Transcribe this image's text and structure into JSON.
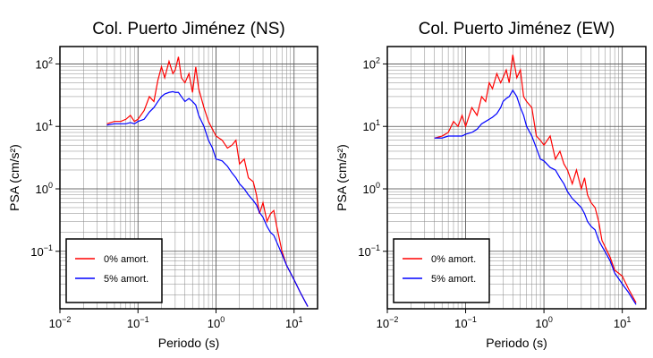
{
  "chart_data": [
    {
      "type": "line",
      "title": "Col. Puerto Jiménez (NS)",
      "xlabel": "Periodo (s)",
      "ylabel": "PSA (cm/s²)",
      "log_x": true,
      "log_y": true,
      "grid": true,
      "legend": "lower left",
      "xlim": [
        0.01,
        20
      ],
      "ylim": [
        0.012,
        190
      ],
      "xticks": [
        {
          "value": 0.01,
          "label": "10",
          "exponent": "−2"
        },
        {
          "value": 0.1,
          "label": "10",
          "exponent": "−1"
        },
        {
          "value": 1,
          "label": "10",
          "exponent": "0"
        },
        {
          "value": 10,
          "label": "10",
          "exponent": "1"
        }
      ],
      "yticks": [
        {
          "value": 0.1,
          "label": "10",
          "exponent": "−1"
        },
        {
          "value": 1,
          "label": "10",
          "exponent": "0"
        },
        {
          "value": 10,
          "label": "10",
          "exponent": "1"
        },
        {
          "value": 100,
          "label": "10",
          "exponent": "2"
        }
      ],
      "x": [
        0.04,
        0.05,
        0.06,
        0.07,
        0.08,
        0.09,
        0.1,
        0.12,
        0.14,
        0.16,
        0.18,
        0.2,
        0.22,
        0.25,
        0.28,
        0.3,
        0.33,
        0.36,
        0.4,
        0.45,
        0.5,
        0.55,
        0.6,
        0.7,
        0.8,
        0.9,
        1.0,
        1.2,
        1.4,
        1.6,
        1.8,
        2.0,
        2.3,
        2.6,
        3.0,
        3.3,
        3.6,
        4.0,
        4.5,
        5.0,
        5.5,
        6.0,
        7.0,
        8.0,
        10,
        12,
        15
      ],
      "series": [
        {
          "name": "0% amort.",
          "color": "#ff0000",
          "values": [
            11,
            12,
            12,
            13,
            15,
            12,
            13,
            18,
            30,
            25,
            55,
            90,
            60,
            110,
            70,
            80,
            130,
            60,
            50,
            70,
            35,
            90,
            40,
            20,
            12,
            9,
            7,
            6,
            4.5,
            5,
            6,
            2.5,
            3,
            1.5,
            1.3,
            0.8,
            0.4,
            0.6,
            0.3,
            0.4,
            0.45,
            0.25,
            0.1,
            0.06,
            0.035,
            0.022,
            0.013
          ]
        },
        {
          "name": "5% amort.",
          "color": "#0000ff",
          "values": [
            10.5,
            11,
            11,
            11,
            11.5,
            11,
            12,
            13,
            17,
            20,
            25,
            30,
            33,
            35,
            36,
            35,
            35,
            30,
            25,
            28,
            25,
            22,
            15,
            10,
            6,
            4.5,
            3,
            2.8,
            2.3,
            1.8,
            1.5,
            1.2,
            1.0,
            0.8,
            0.65,
            0.55,
            0.42,
            0.35,
            0.25,
            0.2,
            0.18,
            0.14,
            0.09,
            0.06,
            0.035,
            0.022,
            0.013
          ]
        }
      ]
    },
    {
      "type": "line",
      "title": "Col. Puerto Jiménez (EW)",
      "xlabel": "Periodo (s)",
      "ylabel": "PSA (cm/s²)",
      "log_x": true,
      "log_y": true,
      "grid": true,
      "legend": "lower left",
      "xlim": [
        0.01,
        20
      ],
      "ylim": [
        0.012,
        190
      ],
      "xticks": [
        {
          "value": 0.01,
          "label": "10",
          "exponent": "−2"
        },
        {
          "value": 0.1,
          "label": "10",
          "exponent": "−1"
        },
        {
          "value": 1,
          "label": "10",
          "exponent": "0"
        },
        {
          "value": 10,
          "label": "10",
          "exponent": "1"
        }
      ],
      "yticks": [
        {
          "value": 0.1,
          "label": "10",
          "exponent": "−1"
        },
        {
          "value": 1,
          "label": "10",
          "exponent": "0"
        },
        {
          "value": 10,
          "label": "10",
          "exponent": "1"
        },
        {
          "value": 100,
          "label": "10",
          "exponent": "2"
        }
      ],
      "x": [
        0.04,
        0.05,
        0.06,
        0.07,
        0.08,
        0.09,
        0.1,
        0.12,
        0.14,
        0.16,
        0.18,
        0.2,
        0.22,
        0.25,
        0.28,
        0.3,
        0.33,
        0.36,
        0.4,
        0.45,
        0.5,
        0.55,
        0.6,
        0.7,
        0.8,
        0.9,
        1.0,
        1.2,
        1.4,
        1.6,
        1.8,
        2.0,
        2.3,
        2.6,
        3.0,
        3.3,
        3.6,
        4.0,
        4.5,
        5.0,
        5.5,
        6.0,
        7.0,
        8.0,
        10,
        12,
        15
      ],
      "series": [
        {
          "name": "0% amort.",
          "color": "#ff0000",
          "values": [
            6.5,
            7,
            8,
            12,
            10,
            15,
            10,
            20,
            15,
            30,
            25,
            50,
            40,
            70,
            50,
            60,
            80,
            50,
            140,
            60,
            80,
            30,
            25,
            20,
            7,
            6,
            5,
            7,
            3,
            4,
            2.5,
            2,
            1.2,
            2,
            1.0,
            1.5,
            0.8,
            0.6,
            0.5,
            0.3,
            0.15,
            0.12,
            0.08,
            0.05,
            0.04,
            0.025,
            0.015
          ]
        },
        {
          "name": "5% amort.",
          "color": "#0000ff",
          "values": [
            6.5,
            6.5,
            7,
            7,
            7,
            7,
            7.5,
            8,
            9,
            11,
            12,
            13,
            14,
            16,
            20,
            25,
            28,
            30,
            38,
            30,
            20,
            15,
            10,
            7,
            4.5,
            3,
            2.8,
            2.2,
            2,
            1.5,
            1.2,
            0.9,
            0.7,
            0.6,
            0.5,
            0.4,
            0.3,
            0.25,
            0.22,
            0.15,
            0.12,
            0.1,
            0.07,
            0.045,
            0.03,
            0.022,
            0.014
          ]
        }
      ]
    }
  ]
}
